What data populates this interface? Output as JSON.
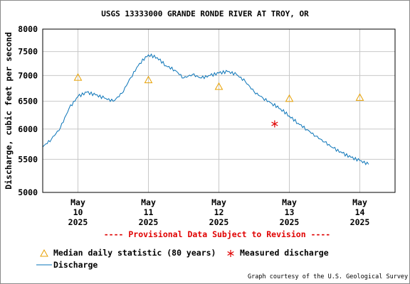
{
  "chart_data": {
    "type": "line",
    "title": "USGS 13333000 GRANDE RONDE RIVER AT TROY, OR",
    "ylabel": "Discharge, cubic feet per second",
    "y_scale": "log",
    "ylim": [
      5000,
      8000
    ],
    "yticks": [
      "8000",
      "7500",
      "7000",
      "6500",
      "6000",
      "5500",
      "5000"
    ],
    "ytick_values": [
      8000,
      7500,
      7000,
      6500,
      6000,
      5500,
      5000
    ],
    "xlim": [
      "2025-05-09T12:00",
      "2025-05-14T12:00"
    ],
    "xticks": [
      {
        "month": "May",
        "day": "10",
        "year": "2025",
        "date": "2025-05-10"
      },
      {
        "month": "May",
        "day": "11",
        "year": "2025",
        "date": "2025-05-11"
      },
      {
        "month": "May",
        "day": "12",
        "year": "2025",
        "date": "2025-05-12"
      },
      {
        "month": "May",
        "day": "13",
        "year": "2025",
        "date": "2025-05-13"
      },
      {
        "month": "May",
        "day": "14",
        "year": "2025",
        "date": "2025-05-14"
      }
    ],
    "grid": true,
    "series": [
      {
        "name": "Discharge",
        "color": "#0a74b8",
        "x": [
          "2025-05-09T12:00",
          "2025-05-09T15:00",
          "2025-05-09T18:00",
          "2025-05-09T21:00",
          "2025-05-10T00:00",
          "2025-05-10T03:00",
          "2025-05-10T06:00",
          "2025-05-10T09:00",
          "2025-05-10T12:00",
          "2025-05-10T15:00",
          "2025-05-10T18:00",
          "2025-05-10T21:00",
          "2025-05-11T00:00",
          "2025-05-11T03:00",
          "2025-05-11T06:00",
          "2025-05-11T09:00",
          "2025-05-11T12:00",
          "2025-05-11T15:00",
          "2025-05-11T18:00",
          "2025-05-11T21:00",
          "2025-05-12T00:00",
          "2025-05-12T03:00",
          "2025-05-12T06:00",
          "2025-05-12T09:00",
          "2025-05-12T12:00",
          "2025-05-12T15:00",
          "2025-05-12T18:00",
          "2025-05-12T21:00",
          "2025-05-13T00:00",
          "2025-05-13T03:00",
          "2025-05-13T06:00",
          "2025-05-13T09:00",
          "2025-05-13T12:00",
          "2025-05-13T15:00",
          "2025-05-13T18:00",
          "2025-05-13T21:00",
          "2025-05-14T00:00",
          "2025-05-14T03:00"
        ],
        "y": [
          5700,
          5830,
          6020,
          6370,
          6590,
          6670,
          6620,
          6560,
          6500,
          6650,
          6960,
          7250,
          7430,
          7370,
          7200,
          7110,
          6950,
          7020,
          6950,
          7000,
          7050,
          7080,
          7020,
          6880,
          6680,
          6560,
          6460,
          6360,
          6230,
          6100,
          5990,
          5880,
          5780,
          5680,
          5600,
          5530,
          5480,
          5420
        ]
      }
    ],
    "markers": [
      {
        "name": "Median daily statistic (80 years)",
        "symbol": "triangle",
        "color": "#e8a000",
        "x": [
          "2025-05-10T00:00",
          "2025-05-11T00:00",
          "2025-05-12T00:00",
          "2025-05-13T00:00",
          "2025-05-14T00:00"
        ],
        "y": [
          6960,
          6910,
          6780,
          6550,
          6570
        ]
      },
      {
        "name": "Measured discharge",
        "symbol": "asterisk",
        "color": "#e00000",
        "x": [
          "2025-05-12T19:00"
        ],
        "y": [
          6090
        ]
      }
    ],
    "annotation": "---- Provisional Data Subject to Revision ----",
    "credit": "Graph courtesy of the U.S. Geological Survey"
  },
  "colors": {
    "grid": "#c8c8c8",
    "frame": "#000000",
    "provisional": "#e00000"
  }
}
